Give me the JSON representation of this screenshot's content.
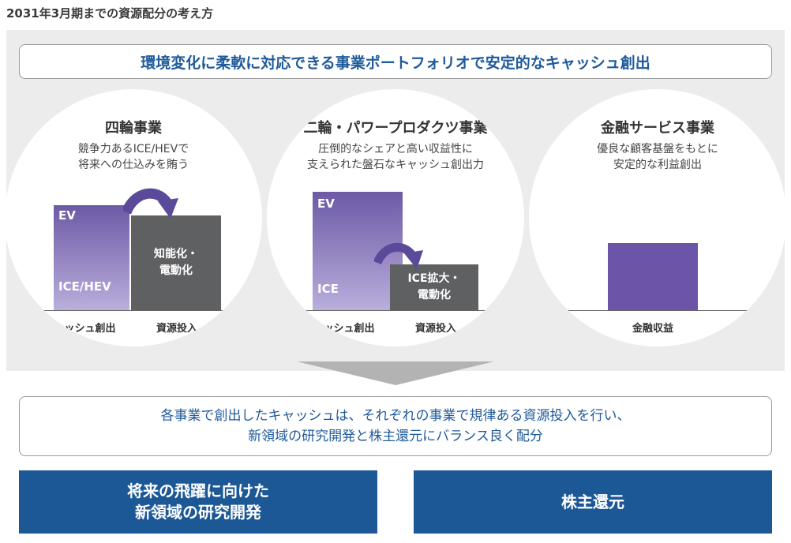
{
  "title": "2031年3月期までの資源配分の考え方",
  "banner": "環境変化に柔軟に対応できる事業ポートフォリオで安定的なキャッシュ創出",
  "segments": [
    {
      "title": "四輪事業",
      "sub1": "競争力あるICE/HEVで",
      "sub2": "将来への仕込みを賄う",
      "bar_top_label": "EV",
      "bar_bottom_label": "ICE/HEV",
      "grey_line1": "知能化・",
      "grey_line2": "電動化",
      "axis_left": "キャッシュ創出",
      "axis_right": "資源投入"
    },
    {
      "title": "二輪・パワープロダクツ事業",
      "sub1": "圧倒的なシェアと高い収益性に",
      "sub2": "支えられた盤石なキャッシュ創出力",
      "bar_top_label": "EV",
      "bar_bottom_label": "ICE",
      "grey_line1": "ICE拡大・",
      "grey_line2": "電動化",
      "axis_left": "キャッシュ創出",
      "axis_right": "資源投入"
    },
    {
      "title": "金融サービス事業",
      "sub1": "優良な顧客基盤をもとに",
      "sub2": "安定的な利益創出",
      "axis_label": "金融収益"
    }
  ],
  "message": {
    "line1": "各事業で創出したキャッシュは、それぞれの事業で規律ある資源投入を行い、",
    "line2": "新領域の研究開発と株主還元にバランス良く配分"
  },
  "buttons": {
    "left_line1": "将来の飛躍に向けた",
    "left_line2": "新領域の研究開発",
    "right": "株主還元"
  },
  "colors": {
    "accent_blue": "#1c5796",
    "text_blue": "#1f5a9a",
    "purple": "#6c5aa6",
    "grey_bar": "#5f6062",
    "panel": "#ececec"
  }
}
